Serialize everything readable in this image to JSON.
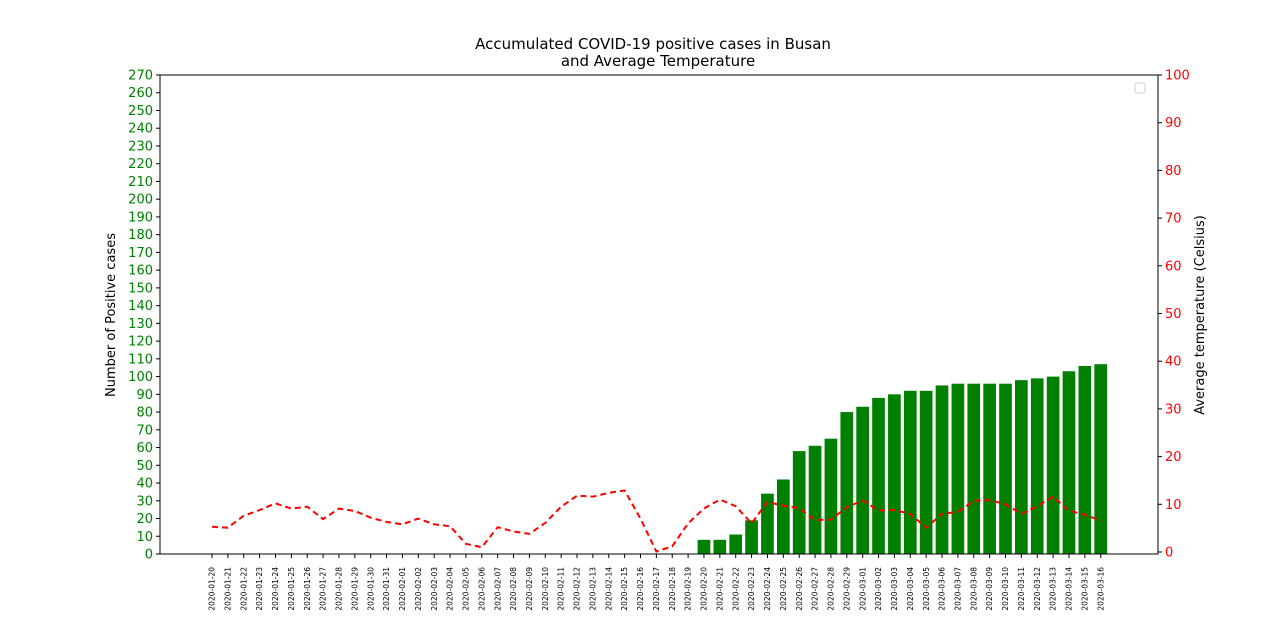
{
  "chart_data": {
    "type": "bar",
    "title": "Accumulated COVID-19 positive cases in Busan\nand Average Temperature",
    "ylabel": "Number of Positive cases",
    "y2label": "Average temperature (Celsius)",
    "ylim": [
      0,
      270
    ],
    "y2lim": [
      0,
      100
    ],
    "yticks": [
      0,
      10,
      20,
      30,
      40,
      50,
      60,
      70,
      80,
      90,
      100,
      110,
      120,
      130,
      140,
      150,
      160,
      170,
      180,
      190,
      200,
      210,
      220,
      230,
      240,
      250,
      260,
      270
    ],
    "y2ticks": [
      0,
      10,
      20,
      30,
      40,
      50,
      60,
      70,
      80,
      90,
      100
    ],
    "legend": "top-right (empty)",
    "categories": [
      "2020-01-20",
      "2020-01-21",
      "2020-01-22",
      "2020-01-23",
      "2020-01-24",
      "2020-01-25",
      "2020-01-26",
      "2020-01-27",
      "2020-01-28",
      "2020-01-29",
      "2020-01-30",
      "2020-01-31",
      "2020-02-01",
      "2020-02-02",
      "2020-02-03",
      "2020-02-04",
      "2020-02-05",
      "2020-02-06",
      "2020-02-07",
      "2020-02-08",
      "2020-02-09",
      "2020-02-10",
      "2020-02-11",
      "2020-02-12",
      "2020-02-13",
      "2020-02-14",
      "2020-02-15",
      "2020-02-16",
      "2020-02-17",
      "2020-02-18",
      "2020-02-19",
      "2020-02-20",
      "2020-02-21",
      "2020-02-22",
      "2020-02-23",
      "2020-02-24",
      "2020-02-25",
      "2020-02-26",
      "2020-02-27",
      "2020-02-28",
      "2020-02-29",
      "2020-03-01",
      "2020-03-02",
      "2020-03-03",
      "2020-03-04",
      "2020-03-05",
      "2020-03-06",
      "2020-03-07",
      "2020-03-08",
      "2020-03-09",
      "2020-03-10",
      "2020-03-11",
      "2020-03-12",
      "2020-03-13",
      "2020-03-14",
      "2020-03-15",
      "2020-03-16"
    ],
    "series": [
      {
        "axis": "left",
        "type": "bar",
        "color": "#008000",
        "values": [
          0,
          0,
          0,
          0,
          0,
          0,
          0,
          0,
          0,
          0,
          0,
          0,
          0,
          0,
          0,
          0,
          0,
          0,
          0,
          0,
          0,
          0,
          0,
          0,
          0,
          0,
          0,
          0,
          0,
          0,
          0,
          8,
          8,
          11,
          19,
          34,
          42,
          58,
          61,
          65,
          80,
          83,
          88,
          90,
          92,
          92,
          95,
          96,
          96,
          96,
          96,
          98,
          99,
          100,
          103,
          106,
          107
        ]
      },
      {
        "axis": "right",
        "type": "line",
        "style": "dashed",
        "color": "#ff0000",
        "values": [
          5.3,
          5.1,
          7.6,
          8.8,
          10.2,
          9.1,
          9.5,
          6.9,
          9.1,
          8.6,
          7.2,
          6.3,
          5.8,
          7.0,
          5.8,
          5.4,
          1.7,
          1.0,
          5.2,
          4.3,
          3.8,
          6.1,
          9.5,
          11.8,
          11.6,
          12.4,
          12.9,
          7.0,
          0.1,
          1.2,
          6.0,
          9.1,
          11.0,
          9.6,
          6.0,
          10.5,
          9.7,
          9.2,
          6.7,
          6.8,
          9.4,
          10.8,
          8.7,
          8.8,
          8.0,
          5.1,
          8.0,
          8.4,
          10.7,
          10.9,
          10.0,
          8.0,
          9.6,
          11.6,
          8.7,
          7.8,
          6.6
        ]
      }
    ]
  }
}
